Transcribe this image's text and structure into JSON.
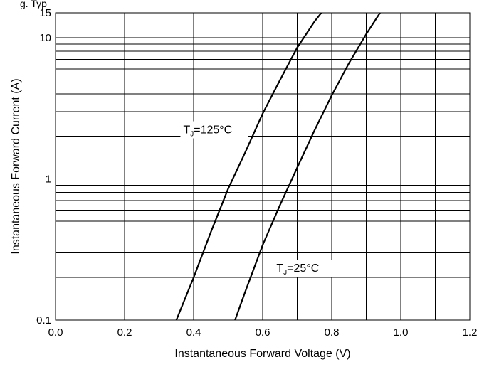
{
  "chart_data": {
    "type": "line",
    "title": "",
    "top_caption_fragment": "g. Typ",
    "xlabel": "Instantaneous Forward Voltage (V)",
    "ylabel": "Instantaneous Forward Current (A)",
    "xlim": [
      0.0,
      1.2
    ],
    "ylim": [
      0.1,
      15
    ],
    "yscale": "log",
    "grid": true,
    "x_ticks": [
      "0.0",
      "0.2",
      "0.4",
      "0.6",
      "0.8",
      "1.0",
      "1.2"
    ],
    "y_ticks": [
      "0.1",
      "1",
      "10",
      "15"
    ],
    "series": [
      {
        "name": "TJ=125°C",
        "label_main": "T",
        "label_sub": "J",
        "label_rest": "=125°C",
        "x": [
          0.35,
          0.4,
          0.45,
          0.5,
          0.55,
          0.6,
          0.65,
          0.7,
          0.75,
          0.77
        ],
        "y": [
          0.1,
          0.2,
          0.42,
          0.85,
          1.55,
          2.9,
          5.0,
          8.5,
          13.0,
          15.0
        ]
      },
      {
        "name": "TJ=25°C",
        "label_main": "T",
        "label_sub": "J",
        "label_rest": "=25°C",
        "x": [
          0.52,
          0.55,
          0.6,
          0.65,
          0.7,
          0.75,
          0.8,
          0.85,
          0.9,
          0.94
        ],
        "y": [
          0.1,
          0.16,
          0.34,
          0.65,
          1.2,
          2.2,
          3.9,
          6.6,
          10.6,
          15.0
        ]
      }
    ]
  }
}
